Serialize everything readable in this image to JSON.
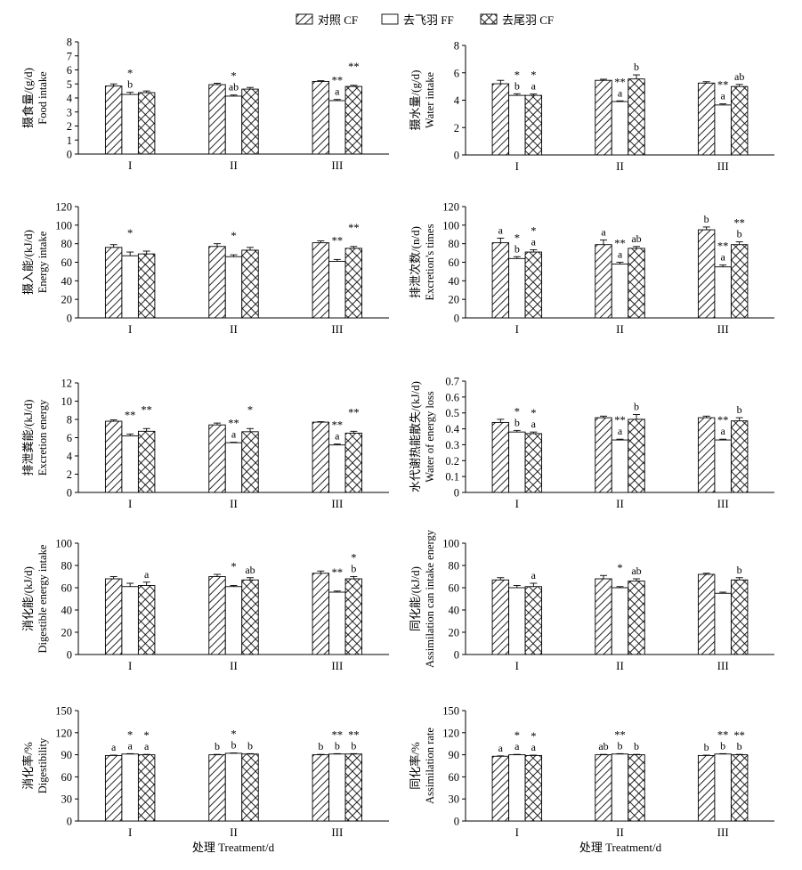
{
  "chart_data": {
    "type": "bar",
    "series_names": [
      "对照 CF",
      "去飞羽 FF",
      "去尾羽 CF"
    ],
    "series_hatch": [
      "diagonal",
      "none",
      "cross"
    ],
    "categories": [
      "I",
      "II",
      "III"
    ],
    "xlabel": "处理 Treatment/d",
    "panels": [
      {
        "ylabel": "摄食量/(g/d)",
        "ylabel_en": "Food intake",
        "ylim": [
          0,
          8
        ],
        "yticks": [
          0,
          1,
          2,
          3,
          4,
          5,
          6,
          7,
          8
        ],
        "series": [
          {
            "values": [
              4.85,
              4.95,
              5.18
            ],
            "errors": [
              0.15,
              0.1,
              0.05
            ],
            "labels": [
              {},
              {},
              {}
            ]
          },
          {
            "values": [
              4.25,
              4.13,
              3.81
            ],
            "errors": [
              0.15,
              0.08,
              0.08
            ],
            "labels": [
              {
                "sig": "*",
                "letter": "b"
              },
              {
                "sig": "*",
                "letter": "ab"
              },
              {
                "sig": "**",
                "letter": "a"
              }
            ]
          },
          {
            "values": [
              4.38,
              4.63,
              4.82
            ],
            "errors": [
              0.12,
              0.12,
              0.08
            ],
            "labels": [
              {},
              {},
              {
                "sig": "**"
              }
            ]
          }
        ]
      },
      {
        "ylabel": "摄水量/(g/d)",
        "ylabel_en": "Water intake",
        "ylim": [
          0,
          8
        ],
        "yticks": [
          0,
          2,
          4,
          6,
          8
        ],
        "series": [
          {
            "values": [
              5.2,
              5.45,
              5.25
            ],
            "errors": [
              0.25,
              0.08,
              0.1
            ],
            "labels": [
              {},
              {},
              {}
            ]
          },
          {
            "values": [
              4.35,
              3.9,
              3.65
            ],
            "errors": [
              0.12,
              0.05,
              0.08
            ],
            "labels": [
              {
                "sig": "*",
                "letter": "b"
              },
              {
                "sig": "**",
                "letter": "a"
              },
              {
                "sig": "**",
                "letter": "a"
              }
            ]
          },
          {
            "values": [
              4.35,
              5.55,
              5.0
            ],
            "errors": [
              0.1,
              0.3,
              0.15
            ],
            "labels": [
              {
                "sig": "*",
                "letter": "a"
              },
              {
                "letter": "b"
              },
              {
                "letter": "ab"
              }
            ]
          }
        ]
      },
      {
        "ylabel": "摄入能/(kJ/d)",
        "ylabel_en": "Energy intake",
        "ylim": [
          0,
          120
        ],
        "yticks": [
          0,
          20,
          40,
          60,
          80,
          100,
          120
        ],
        "series": [
          {
            "values": [
              76,
              77,
              81
            ],
            "errors": [
              3,
              3,
              2
            ],
            "labels": [
              {},
              {},
              {}
            ]
          },
          {
            "values": [
              67,
              66,
              61
            ],
            "errors": [
              4,
              2,
              2
            ],
            "labels": [
              {
                "sig": "*"
              },
              {
                "sig": "*"
              },
              {
                "sig": "**"
              }
            ]
          },
          {
            "values": [
              69,
              73,
              75
            ],
            "errors": [
              3,
              3,
              2
            ],
            "labels": [
              {},
              {},
              {
                "sig": "**"
              }
            ]
          }
        ]
      },
      {
        "ylabel": "排泄次数/(n/d)",
        "ylabel_en": "Excretion's times",
        "ylim": [
          0,
          120
        ],
        "yticks": [
          0,
          20,
          40,
          60,
          80,
          100,
          120
        ],
        "series": [
          {
            "values": [
              81,
              79,
              95
            ],
            "errors": [
              5,
              5,
              3
            ],
            "labels": [
              {
                "letter": "a"
              },
              {
                "letter": "a"
              },
              {
                "letter": "b"
              }
            ]
          },
          {
            "values": [
              64,
              58,
              55
            ],
            "errors": [
              2,
              2,
              2
            ],
            "labels": [
              {
                "sig": "*",
                "letter": "b"
              },
              {
                "sig": "**",
                "letter": "a"
              },
              {
                "sig": "**",
                "letter": "a"
              }
            ]
          },
          {
            "values": [
              71,
              75,
              79
            ],
            "errors": [
              2.5,
              2,
              3
            ],
            "labels": [
              {
                "sig": "*",
                "letter": "a"
              },
              {
                "letter": "ab"
              },
              {
                "sig": "**",
                "letter": "b"
              }
            ]
          }
        ]
      },
      {
        "ylabel": "排泄粪能/(kJ/d)",
        "ylabel_en": "Excretion energy",
        "ylim": [
          0,
          12
        ],
        "yticks": [
          0,
          2,
          4,
          6,
          8,
          10,
          12
        ],
        "series": [
          {
            "values": [
              7.8,
              7.4,
              7.7
            ],
            "errors": [
              0.15,
              0.2,
              0.05
            ],
            "labels": [
              {},
              {},
              {}
            ]
          },
          {
            "values": [
              6.2,
              5.45,
              5.2
            ],
            "errors": [
              0.2,
              0.05,
              0.1
            ],
            "labels": [
              {
                "sig": "**"
              },
              {
                "sig": "**",
                "letter": "a"
              },
              {
                "sig": "**",
                "letter": "a"
              }
            ]
          },
          {
            "values": [
              6.7,
              6.65,
              6.5
            ],
            "errors": [
              0.3,
              0.35,
              0.2
            ],
            "labels": [
              {
                "sig": "**"
              },
              {
                "sig": "*"
              },
              {
                "sig": "**"
              }
            ]
          }
        ]
      },
      {
        "ylabel": "水代谢热能散失/(kJ/d)",
        "ylabel_en": "Water of energy loss",
        "ylim": [
          0,
          0.7
        ],
        "yticks": [
          0,
          0.1,
          0.2,
          0.3,
          0.4,
          0.5,
          0.6,
          0.7
        ],
        "series": [
          {
            "values": [
              0.44,
              0.47,
              0.47
            ],
            "errors": [
              0.02,
              0.01,
              0.01
            ],
            "labels": [
              {},
              {},
              {}
            ]
          },
          {
            "values": [
              0.38,
              0.33,
              0.33
            ],
            "errors": [
              0.01,
              0.005,
              0.005
            ],
            "labels": [
              {
                "sig": "*",
                "letter": "b"
              },
              {
                "sig": "**",
                "letter": "a"
              },
              {
                "sig": "**",
                "letter": "a"
              }
            ]
          },
          {
            "values": [
              0.37,
              0.46,
              0.45
            ],
            "errors": [
              0.01,
              0.03,
              0.02
            ],
            "labels": [
              {
                "sig": "*",
                "letter": "a"
              },
              {
                "letter": "b"
              },
              {
                "letter": "b"
              }
            ]
          }
        ]
      },
      {
        "ylabel": "消化能/(kJ/d)",
        "ylabel_en": "Digestible energy intake",
        "ylim": [
          0,
          100
        ],
        "yticks": [
          0,
          20,
          40,
          60,
          80,
          100
        ],
        "series": [
          {
            "values": [
              68,
              70,
              73
            ],
            "errors": [
              2,
              2,
              2
            ],
            "labels": [
              {},
              {},
              {}
            ]
          },
          {
            "values": [
              61,
              61,
              56
            ],
            "errors": [
              3,
              1,
              1
            ],
            "labels": [
              {},
              {
                "sig": "*"
              },
              {
                "sig": "**"
              }
            ]
          },
          {
            "values": [
              62,
              67,
              68
            ],
            "errors": [
              3,
              2,
              2
            ],
            "labels": [
              {
                "letter": "a"
              },
              {
                "letter": "ab"
              },
              {
                "sig": "*",
                "letter": "b"
              }
            ]
          }
        ]
      },
      {
        "ylabel": "同化能/(kJ/d)",
        "ylabel_en": "Assimilation can intake energy",
        "ylim": [
          0,
          100
        ],
        "yticks": [
          0,
          20,
          40,
          60,
          80,
          100
        ],
        "series": [
          {
            "values": [
              67,
              68,
              72
            ],
            "errors": [
              2,
              3,
              1
            ],
            "labels": [
              {},
              {},
              {}
            ]
          },
          {
            "values": [
              60,
              60,
              55
            ],
            "errors": [
              2,
              1,
              1
            ],
            "labels": [
              {},
              {
                "sig": "*"
              },
              {}
            ]
          },
          {
            "values": [
              61,
              66,
              67
            ],
            "errors": [
              3,
              2,
              2
            ],
            "labels": [
              {
                "letter": "a"
              },
              {
                "letter": "ab"
              },
              {
                "letter": "b"
              }
            ]
          }
        ]
      },
      {
        "ylabel": "消化率/%",
        "ylabel_en": "Digestibility",
        "ylim": [
          0,
          150
        ],
        "yticks": [
          0,
          30,
          60,
          90,
          120,
          150
        ],
        "series": [
          {
            "values": [
              89,
              90,
              90
            ],
            "errors": [
              0.5,
              0.5,
              0.5
            ],
            "labels": [
              {
                "letter": "a"
              },
              {
                "letter": "b"
              },
              {
                "letter": "b"
              }
            ]
          },
          {
            "values": [
              91,
              92,
              91
            ],
            "errors": [
              0.5,
              0.5,
              0.5
            ],
            "labels": [
              {
                "sig": "*",
                "letter": "a"
              },
              {
                "sig": "*",
                "letter": "b"
              },
              {
                "sig": "**",
                "letter": "b"
              }
            ]
          },
          {
            "values": [
              90,
              91,
              91
            ],
            "errors": [
              0.5,
              0.5,
              0.5
            ],
            "labels": [
              {
                "sig": "*",
                "letter": "a"
              },
              {
                "letter": "b"
              },
              {
                "sig": "**",
                "letter": "b"
              }
            ]
          }
        ]
      },
      {
        "ylabel": "同化率/%",
        "ylabel_en": "Assimilation rate",
        "ylim": [
          0,
          150
        ],
        "yticks": [
          0,
          30,
          60,
          90,
          120,
          150
        ],
        "series": [
          {
            "values": [
              88,
              90,
              89
            ],
            "errors": [
              0.5,
              0.5,
              0.5
            ],
            "labels": [
              {
                "letter": "a"
              },
              {
                "letter": "ab"
              },
              {
                "letter": "b"
              }
            ]
          },
          {
            "values": [
              90,
              91,
              91
            ],
            "errors": [
              0.5,
              0.5,
              0.5
            ],
            "labels": [
              {
                "sig": "*",
                "letter": "a"
              },
              {
                "sig": "**",
                "letter": "b"
              },
              {
                "sig": "**",
                "letter": "b"
              }
            ]
          },
          {
            "values": [
              89,
              90,
              90
            ],
            "errors": [
              0.5,
              0.5,
              0.5
            ],
            "labels": [
              {
                "sig": "*",
                "letter": "a"
              },
              {
                "letter": "b"
              },
              {
                "sig": "**",
                "letter": "b"
              }
            ]
          }
        ]
      }
    ]
  }
}
